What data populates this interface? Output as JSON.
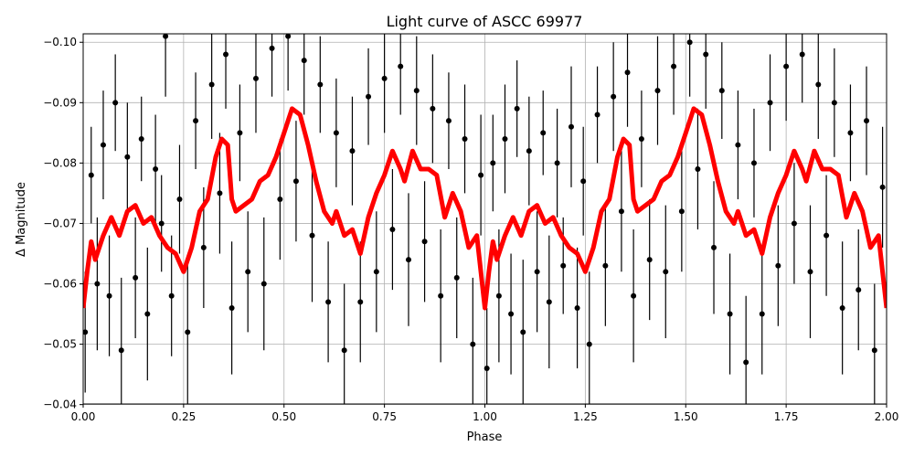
{
  "chart_data": {
    "type": "scatter",
    "title": "Light curve of ASCC 69977",
    "xlabel": "Phase",
    "ylabel": "Δ Magnitude",
    "xlim": [
      0.0,
      2.0
    ],
    "ylim": [
      -0.0401,
      -0.1014
    ],
    "y_inverted": true,
    "grid": true,
    "xticks": [
      "0.00",
      "0.25",
      "0.50",
      "0.75",
      "1.00",
      "1.25",
      "1.50",
      "1.75",
      "2.00"
    ],
    "yticks": [
      "-0.10",
      "-0.09",
      "-0.08",
      "-0.07",
      "-0.06",
      "-0.05",
      "-0.04"
    ],
    "series": [
      {
        "kind": "errorbar-points",
        "color": "#000000",
        "points": [
          [
            0.005,
            -0.052,
            0.01
          ],
          [
            0.02,
            -0.078,
            0.008
          ],
          [
            0.035,
            -0.06,
            0.011
          ],
          [
            0.05,
            -0.083,
            0.009
          ],
          [
            0.065,
            -0.058,
            0.01
          ],
          [
            0.08,
            -0.09,
            0.008
          ],
          [
            0.095,
            -0.049,
            0.012
          ],
          [
            0.11,
            -0.081,
            0.009
          ],
          [
            0.13,
            -0.061,
            0.01
          ],
          [
            0.145,
            -0.084,
            0.007
          ],
          [
            0.16,
            -0.055,
            0.011
          ],
          [
            0.18,
            -0.079,
            0.009
          ],
          [
            0.195,
            -0.07,
            0.008
          ],
          [
            0.205,
            -0.101,
            0.01
          ],
          [
            0.22,
            -0.058,
            0.01
          ],
          [
            0.24,
            -0.074,
            0.009
          ],
          [
            0.26,
            -0.052,
            0.012
          ],
          [
            0.28,
            -0.087,
            0.008
          ],
          [
            0.3,
            -0.066,
            0.01
          ],
          [
            0.32,
            -0.093,
            0.009
          ],
          [
            0.34,
            -0.075,
            0.01
          ],
          [
            0.355,
            -0.098,
            0.009
          ],
          [
            0.37,
            -0.056,
            0.011
          ],
          [
            0.39,
            -0.085,
            0.008
          ],
          [
            0.41,
            -0.062,
            0.01
          ],
          [
            0.43,
            -0.094,
            0.009
          ],
          [
            0.45,
            -0.06,
            0.011
          ],
          [
            0.47,
            -0.099,
            0.008
          ],
          [
            0.49,
            -0.074,
            0.01
          ],
          [
            0.51,
            -0.101,
            0.009
          ],
          [
            0.53,
            -0.077,
            0.01
          ],
          [
            0.55,
            -0.097,
            0.009
          ],
          [
            0.57,
            -0.068,
            0.011
          ],
          [
            0.59,
            -0.093,
            0.008
          ],
          [
            0.61,
            -0.057,
            0.01
          ],
          [
            0.63,
            -0.085,
            0.009
          ],
          [
            0.65,
            -0.049,
            0.011
          ],
          [
            0.67,
            -0.082,
            0.009
          ],
          [
            0.69,
            -0.057,
            0.01
          ],
          [
            0.71,
            -0.091,
            0.008
          ],
          [
            0.73,
            -0.062,
            0.01
          ],
          [
            0.75,
            -0.094,
            0.009
          ],
          [
            0.77,
            -0.069,
            0.01
          ],
          [
            0.79,
            -0.096,
            0.008
          ],
          [
            0.81,
            -0.064,
            0.011
          ],
          [
            0.83,
            -0.092,
            0.009
          ],
          [
            0.85,
            -0.067,
            0.01
          ],
          [
            0.87,
            -0.089,
            0.009
          ],
          [
            0.89,
            -0.058,
            0.011
          ],
          [
            0.91,
            -0.087,
            0.008
          ],
          [
            0.93,
            -0.061,
            0.01
          ],
          [
            0.95,
            -0.084,
            0.009
          ],
          [
            0.97,
            -0.05,
            0.011
          ],
          [
            0.99,
            -0.078,
            0.01
          ],
          [
            1.005,
            -0.046,
            0.01
          ],
          [
            1.02,
            -0.08,
            0.008
          ],
          [
            1.035,
            -0.058,
            0.011
          ],
          [
            1.05,
            -0.084,
            0.009
          ],
          [
            1.065,
            -0.055,
            0.01
          ],
          [
            1.08,
            -0.089,
            0.008
          ],
          [
            1.095,
            -0.052,
            0.012
          ],
          [
            1.11,
            -0.082,
            0.009
          ],
          [
            1.13,
            -0.062,
            0.01
          ],
          [
            1.145,
            -0.085,
            0.007
          ],
          [
            1.16,
            -0.057,
            0.011
          ],
          [
            1.18,
            -0.08,
            0.009
          ],
          [
            1.195,
            -0.063,
            0.008
          ],
          [
            1.215,
            -0.086,
            0.01
          ],
          [
            1.23,
            -0.056,
            0.01
          ],
          [
            1.245,
            -0.077,
            0.009
          ],
          [
            1.26,
            -0.05,
            0.012
          ],
          [
            1.28,
            -0.088,
            0.008
          ],
          [
            1.3,
            -0.063,
            0.01
          ],
          [
            1.32,
            -0.091,
            0.009
          ],
          [
            1.34,
            -0.072,
            0.01
          ],
          [
            1.355,
            -0.095,
            0.009
          ],
          [
            1.37,
            -0.058,
            0.011
          ],
          [
            1.39,
            -0.084,
            0.008
          ],
          [
            1.41,
            -0.064,
            0.01
          ],
          [
            1.43,
            -0.092,
            0.009
          ],
          [
            1.45,
            -0.062,
            0.011
          ],
          [
            1.47,
            -0.096,
            0.008
          ],
          [
            1.49,
            -0.072,
            0.01
          ],
          [
            1.51,
            -0.1,
            0.009
          ],
          [
            1.53,
            -0.079,
            0.01
          ],
          [
            1.55,
            -0.098,
            0.009
          ],
          [
            1.57,
            -0.066,
            0.011
          ],
          [
            1.59,
            -0.092,
            0.008
          ],
          [
            1.61,
            -0.055,
            0.01
          ],
          [
            1.63,
            -0.083,
            0.009
          ],
          [
            1.65,
            -0.047,
            0.011
          ],
          [
            1.67,
            -0.08,
            0.009
          ],
          [
            1.69,
            -0.055,
            0.01
          ],
          [
            1.71,
            -0.09,
            0.008
          ],
          [
            1.73,
            -0.063,
            0.01
          ],
          [
            1.75,
            -0.096,
            0.009
          ],
          [
            1.77,
            -0.07,
            0.01
          ],
          [
            1.79,
            -0.098,
            0.008
          ],
          [
            1.81,
            -0.062,
            0.011
          ],
          [
            1.83,
            -0.093,
            0.009
          ],
          [
            1.85,
            -0.068,
            0.01
          ],
          [
            1.87,
            -0.09,
            0.009
          ],
          [
            1.89,
            -0.056,
            0.011
          ],
          [
            1.91,
            -0.085,
            0.008
          ],
          [
            1.93,
            -0.059,
            0.01
          ],
          [
            1.95,
            -0.087,
            0.009
          ],
          [
            1.97,
            -0.049,
            0.011
          ],
          [
            1.99,
            -0.076,
            0.01
          ]
        ]
      },
      {
        "kind": "smoothed-line",
        "color": "#ff0000",
        "x": [
          0.0,
          0.01,
          0.02,
          0.03,
          0.05,
          0.07,
          0.09,
          0.11,
          0.13,
          0.15,
          0.17,
          0.19,
          0.21,
          0.23,
          0.25,
          0.27,
          0.29,
          0.31,
          0.33,
          0.345,
          0.36,
          0.37,
          0.38,
          0.4,
          0.42,
          0.44,
          0.46,
          0.48,
          0.5,
          0.52,
          0.54,
          0.56,
          0.58,
          0.6,
          0.62,
          0.63,
          0.65,
          0.67,
          0.69,
          0.71,
          0.73,
          0.75,
          0.77,
          0.79,
          0.8,
          0.82,
          0.84,
          0.86,
          0.88,
          0.9,
          0.92,
          0.94,
          0.96,
          0.98,
          1.0,
          1.01,
          1.02,
          1.03,
          1.05,
          1.07,
          1.09,
          1.11,
          1.13,
          1.15,
          1.17,
          1.19,
          1.21,
          1.23,
          1.25,
          1.27,
          1.29,
          1.31,
          1.33,
          1.345,
          1.36,
          1.37,
          1.38,
          1.4,
          1.42,
          1.44,
          1.46,
          1.48,
          1.5,
          1.52,
          1.54,
          1.56,
          1.58,
          1.6,
          1.62,
          1.63,
          1.65,
          1.67,
          1.69,
          1.71,
          1.73,
          1.75,
          1.77,
          1.79,
          1.8,
          1.82,
          1.84,
          1.86,
          1.88,
          1.9,
          1.92,
          1.94,
          1.96,
          1.98,
          2.0
        ],
        "y": [
          -0.056,
          -0.062,
          -0.067,
          -0.064,
          -0.068,
          -0.071,
          -0.068,
          -0.072,
          -0.073,
          -0.07,
          -0.071,
          -0.068,
          -0.066,
          -0.065,
          -0.062,
          -0.066,
          -0.072,
          -0.074,
          -0.081,
          -0.084,
          -0.083,
          -0.074,
          -0.072,
          -0.073,
          -0.074,
          -0.077,
          -0.078,
          -0.081,
          -0.085,
          -0.089,
          -0.088,
          -0.083,
          -0.077,
          -0.072,
          -0.07,
          -0.072,
          -0.068,
          -0.069,
          -0.065,
          -0.071,
          -0.075,
          -0.078,
          -0.082,
          -0.079,
          -0.077,
          -0.082,
          -0.079,
          -0.079,
          -0.078,
          -0.071,
          -0.075,
          -0.072,
          -0.066,
          -0.068,
          -0.056,
          -0.062,
          -0.067,
          -0.064,
          -0.068,
          -0.071,
          -0.068,
          -0.072,
          -0.073,
          -0.07,
          -0.071,
          -0.068,
          -0.066,
          -0.065,
          -0.062,
          -0.066,
          -0.072,
          -0.074,
          -0.081,
          -0.084,
          -0.083,
          -0.074,
          -0.072,
          -0.073,
          -0.074,
          -0.077,
          -0.078,
          -0.081,
          -0.085,
          -0.089,
          -0.088,
          -0.083,
          -0.077,
          -0.072,
          -0.07,
          -0.072,
          -0.068,
          -0.069,
          -0.065,
          -0.071,
          -0.075,
          -0.078,
          -0.082,
          -0.079,
          -0.077,
          -0.082,
          -0.079,
          -0.079,
          -0.078,
          -0.071,
          -0.075,
          -0.072,
          -0.066,
          -0.068,
          -0.056
        ]
      }
    ]
  }
}
